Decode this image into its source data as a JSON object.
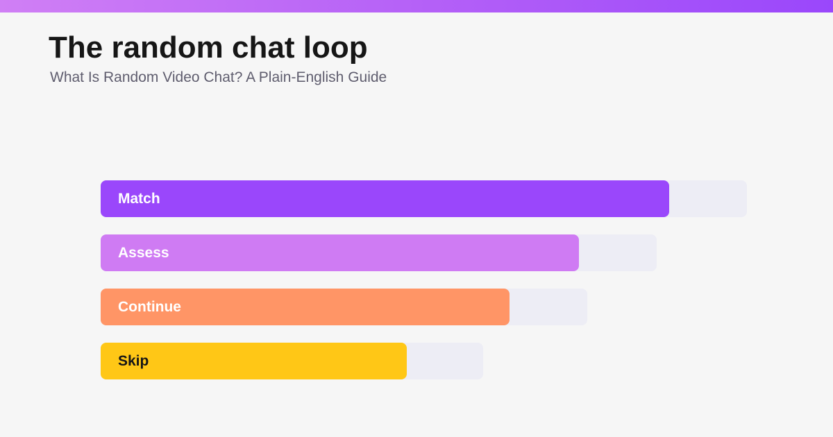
{
  "header": {
    "title": "The random chat loop",
    "subtitle": "What Is Random Video Chat? A Plain-English Guide"
  },
  "colors": {
    "accent_gradient": [
      "#d07ff5",
      "#9a47fb"
    ],
    "track": "#ededf5",
    "title_text": "#161616",
    "subtitle_text": "#5f5d6e"
  },
  "steps": [
    {
      "id": "match",
      "label": "Match",
      "fill_fraction": 0.88,
      "color": "#9a47fb",
      "text_color": "#ffffff"
    },
    {
      "id": "assess",
      "label": "Assess",
      "fill_fraction": 0.86,
      "color": "#cf7bf3",
      "text_color": "#ffffff"
    },
    {
      "id": "continue",
      "label": "Continue",
      "fill_fraction": 0.84,
      "color": "#ff9566",
      "text_color": "#ffffff"
    },
    {
      "id": "skip",
      "label": "Skip",
      "fill_fraction": 0.8,
      "color": "#ffc716",
      "text_color": "#161616"
    }
  ]
}
